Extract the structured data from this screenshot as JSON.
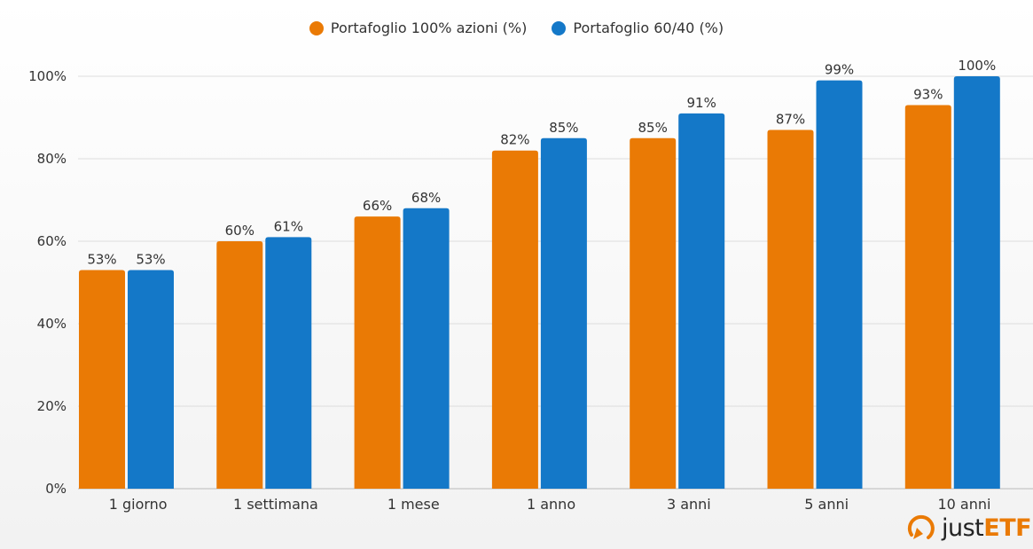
{
  "chart_data": {
    "type": "bar",
    "categories": [
      "1 giorno",
      "1 settimana",
      "1 mese",
      "1 anno",
      "3 anni",
      "5 anni",
      "10 anni"
    ],
    "series": [
      {
        "name": "Portafoglio 100% azioni (%)",
        "color": "#ea7a05",
        "values": [
          53,
          60,
          66,
          82,
          85,
          87,
          93
        ]
      },
      {
        "name": "Portafoglio 60/40 (%)",
        "color": "#1478c8",
        "values": [
          53,
          61,
          68,
          85,
          91,
          99,
          100
        ]
      }
    ],
    "yticks": [
      "0%",
      "20%",
      "40%",
      "60%",
      "80%",
      "100%"
    ],
    "ylim": [
      0,
      100
    ],
    "grid": true,
    "legend": "top-center",
    "data_labels": true
  },
  "logo": {
    "text_a": "just",
    "text_b": "ETF"
  }
}
